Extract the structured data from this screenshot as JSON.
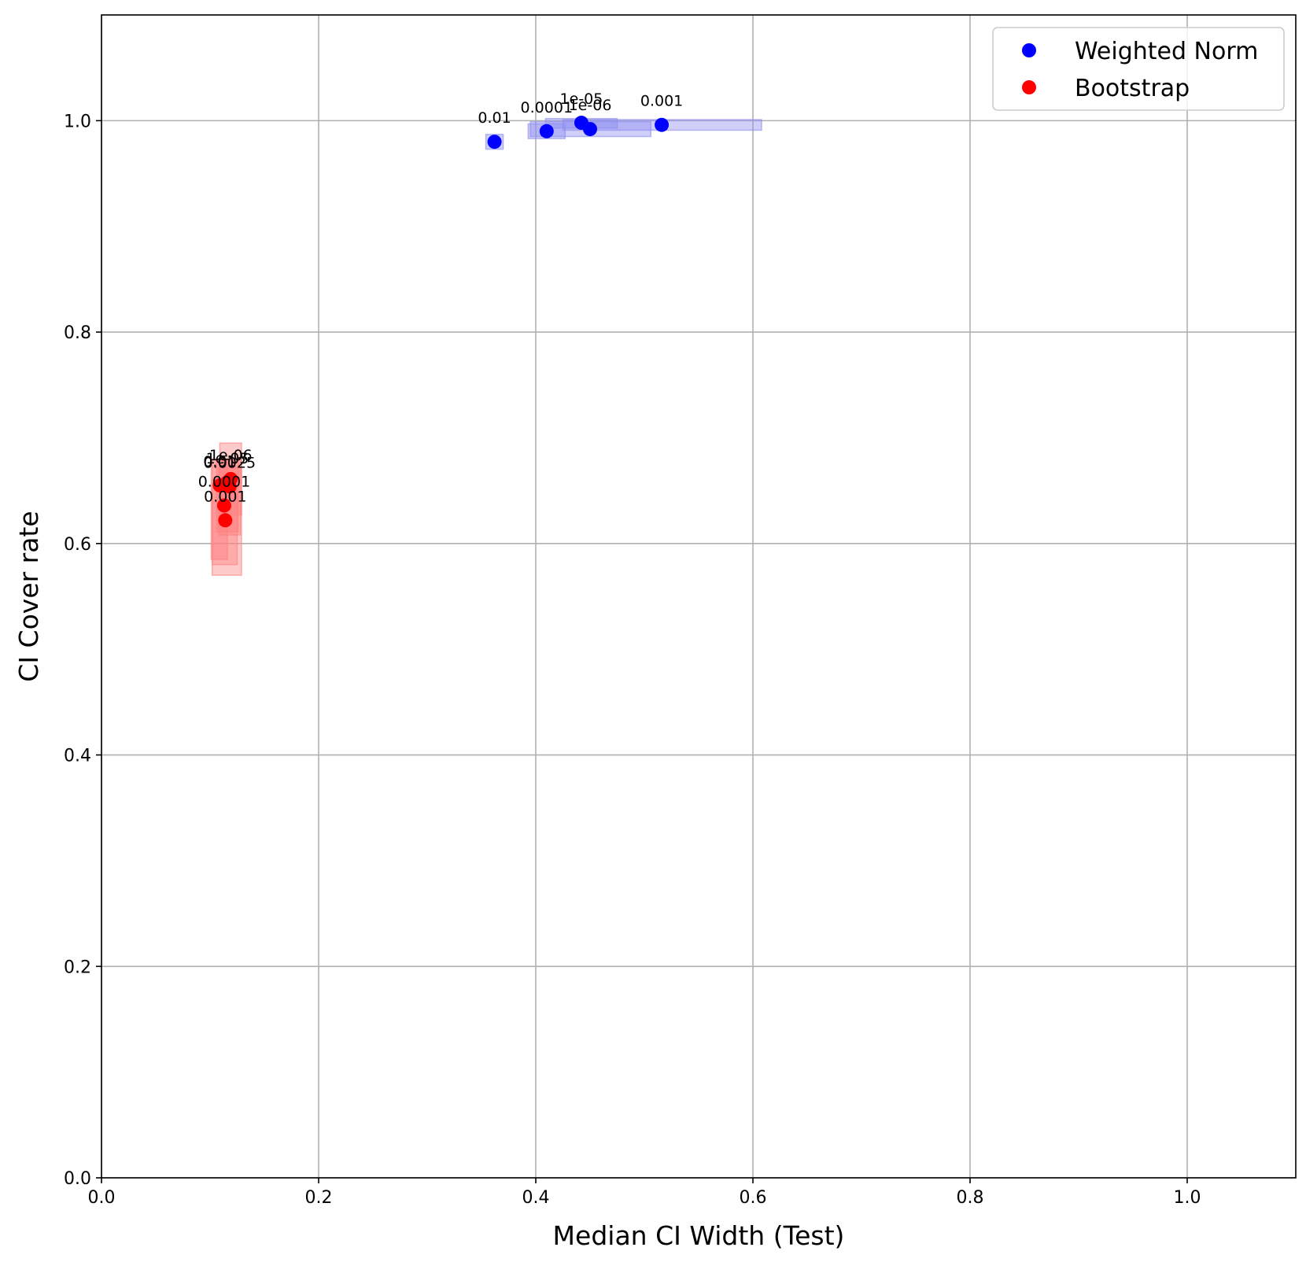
{
  "chart_data": {
    "type": "scatter",
    "xlabel": "Median CI Width (Test)",
    "ylabel": "CI Cover rate",
    "xlim": [
      0,
      1.1
    ],
    "ylim": [
      0,
      1.1
    ],
    "xticks": [
      "0.0",
      "0.2",
      "0.4",
      "0.6",
      "0.8",
      "1.0"
    ],
    "yticks": [
      "0.0",
      "0.2",
      "0.4",
      "0.6",
      "0.8",
      "1.0"
    ],
    "grid": true,
    "legend_position": "top-right",
    "series": [
      {
        "name": "Weighted Norm",
        "color": "#0000ff",
        "band_color": "#8c8cf0",
        "points": [
          {
            "label": "0.01",
            "x": 0.362,
            "y": 0.98,
            "xerr": [
              0.354,
              0.37
            ],
            "yerr": [
              0.973,
              0.987
            ]
          },
          {
            "label": "0.0001",
            "x": 0.41,
            "y": 0.99,
            "xerr": [
              0.393,
              0.427
            ],
            "yerr": [
              0.983,
              0.997
            ]
          },
          {
            "label": "1e-05",
            "x": 0.442,
            "y": 0.998,
            "xerr": [
              0.409,
              0.475
            ],
            "yerr": [
              0.993,
              1.002
            ]
          },
          {
            "label": "1e-06",
            "x": 0.45,
            "y": 0.992,
            "xerr": [
              0.395,
              0.506
            ],
            "yerr": [
              0.985,
              0.999
            ]
          },
          {
            "label": "0.001",
            "x": 0.516,
            "y": 0.996,
            "xerr": [
              0.425,
              0.608
            ],
            "yerr": [
              0.991,
              1.001
            ]
          }
        ]
      },
      {
        "name": "Bootstrap",
        "color": "#ff0000",
        "band_color": "#ff8080",
        "points": [
          {
            "label": "1e-06",
            "x": 0.119,
            "y": 0.661,
            "xerr": [
              0.109,
              0.129
            ],
            "yerr": [
              0.627,
              0.695
            ]
          },
          {
            "label": "1e-05",
            "x": 0.116,
            "y": 0.658,
            "xerr": [
              0.106,
              0.126
            ],
            "yerr": [
              0.611,
              0.679
            ]
          },
          {
            "label": "0.0025",
            "x": 0.118,
            "y": 0.654,
            "xerr": [
              0.108,
              0.128
            ],
            "yerr": [
              0.608,
              0.672
            ]
          },
          {
            "label": "0.01",
            "x": 0.109,
            "y": 0.655,
            "xerr": [
              0.101,
              0.116
            ],
            "yerr": [
              0.585,
              0.679
            ]
          },
          {
            "label": "0.0001",
            "x": 0.113,
            "y": 0.636,
            "xerr": [
              0.102,
              0.125
            ],
            "yerr": [
              0.58,
              0.66
            ]
          },
          {
            "label": "0.001",
            "x": 0.114,
            "y": 0.622,
            "xerr": [
              0.102,
              0.129
            ],
            "yerr": [
              0.57,
              0.68
            ]
          }
        ]
      }
    ]
  }
}
